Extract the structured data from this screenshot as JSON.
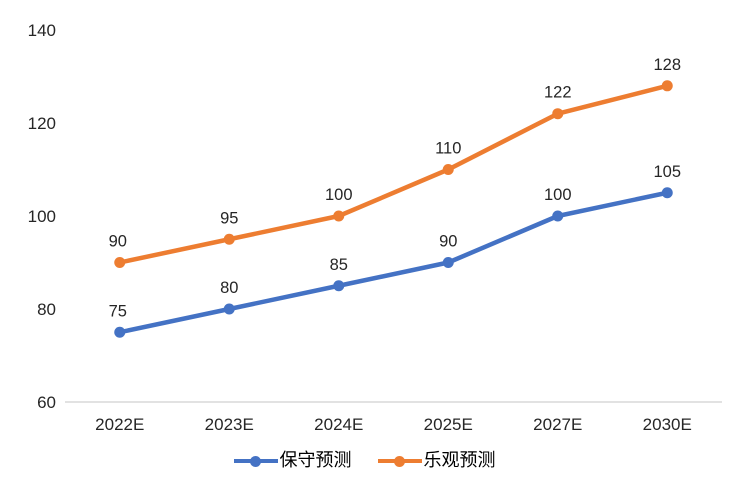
{
  "chart_data": {
    "type": "line",
    "categories": [
      "2022E",
      "2023E",
      "2024E",
      "2025E",
      "2027E",
      "2030E"
    ],
    "series": [
      {
        "name": "保守预测",
        "color": "#4472C4",
        "values": [
          75,
          80,
          85,
          90,
          100,
          105
        ]
      },
      {
        "name": "乐观预测",
        "color": "#ED7D31",
        "values": [
          90,
          95,
          100,
          110,
          122,
          128
        ]
      }
    ],
    "title": "",
    "xlabel": "",
    "ylabel": "",
    "ylim": [
      60,
      140
    ],
    "yticks": [
      60,
      80,
      100,
      120,
      140
    ],
    "grid": "off",
    "legend_position": "bottom",
    "axis_line_color": "#D9D9D9",
    "label_color": "#262626",
    "data_labels": "on"
  }
}
